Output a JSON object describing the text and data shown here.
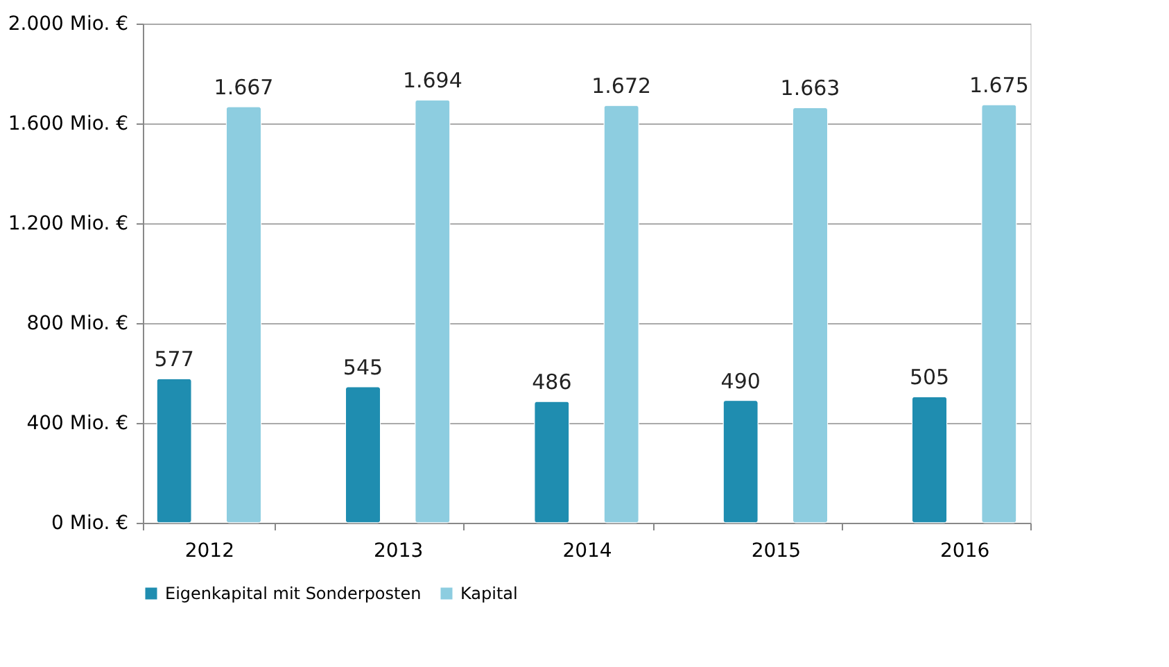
{
  "chart_data": {
    "type": "bar",
    "categories": [
      "2012",
      "2013",
      "2014",
      "2015",
      "2016"
    ],
    "series": [
      {
        "name": "Eigenkapital mit Sonderposten",
        "color": "#1f8db0",
        "values": [
          577,
          545,
          486,
          490,
          505
        ],
        "value_labels": [
          "577",
          "545",
          "486",
          "490",
          "505"
        ]
      },
      {
        "name": "Kapital",
        "color": "#8dcde0",
        "values": [
          1667,
          1694,
          1672,
          1663,
          1675
        ],
        "value_labels": [
          "1.667",
          "1.694",
          "1.672",
          "1.663",
          "1.675"
        ]
      }
    ],
    "ylim": [
      0,
      2000
    ],
    "yticks": [
      {
        "value": 0,
        "label": "0 Mio. €"
      },
      {
        "value": 400,
        "label": "400 Mio. €"
      },
      {
        "value": 800,
        "label": "800 Mio. €"
      },
      {
        "value": 1200,
        "label": "1.200 Mio. €"
      },
      {
        "value": 1600,
        "label": "1.600 Mio. €"
      },
      {
        "value": 2000,
        "label": "2.000 Mio. €"
      }
    ],
    "grid": "y",
    "legend": "bottom"
  }
}
